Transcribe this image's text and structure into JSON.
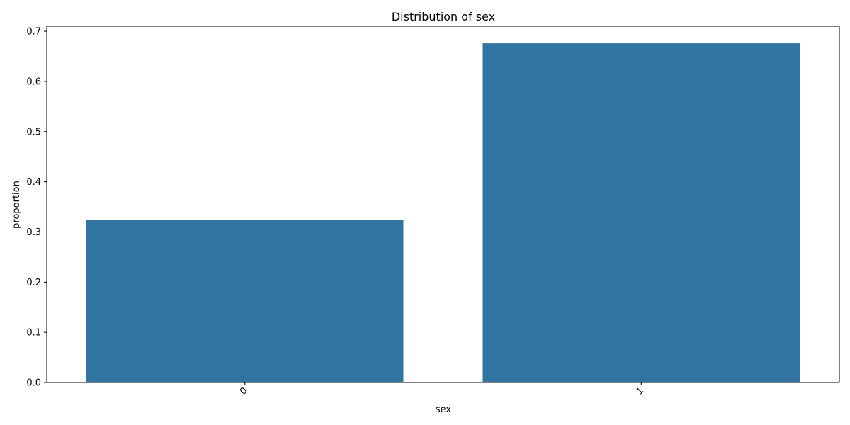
{
  "chart_data": {
    "type": "bar",
    "title": "Distribution of sex",
    "xlabel": "sex",
    "ylabel": "proportion",
    "categories": [
      "0",
      "1"
    ],
    "values": [
      0.324,
      0.676
    ],
    "ylim": [
      0,
      0.71
    ],
    "yticks": [
      "0.0",
      "0.1",
      "0.2",
      "0.3",
      "0.4",
      "0.5",
      "0.6",
      "0.7"
    ],
    "ytick_values": [
      0,
      0.1,
      0.2,
      0.3,
      0.4,
      0.5,
      0.6,
      0.7
    ],
    "x_tick_rotation": "45",
    "bar_color": "#3274a1",
    "grid": false,
    "legend": "none"
  }
}
